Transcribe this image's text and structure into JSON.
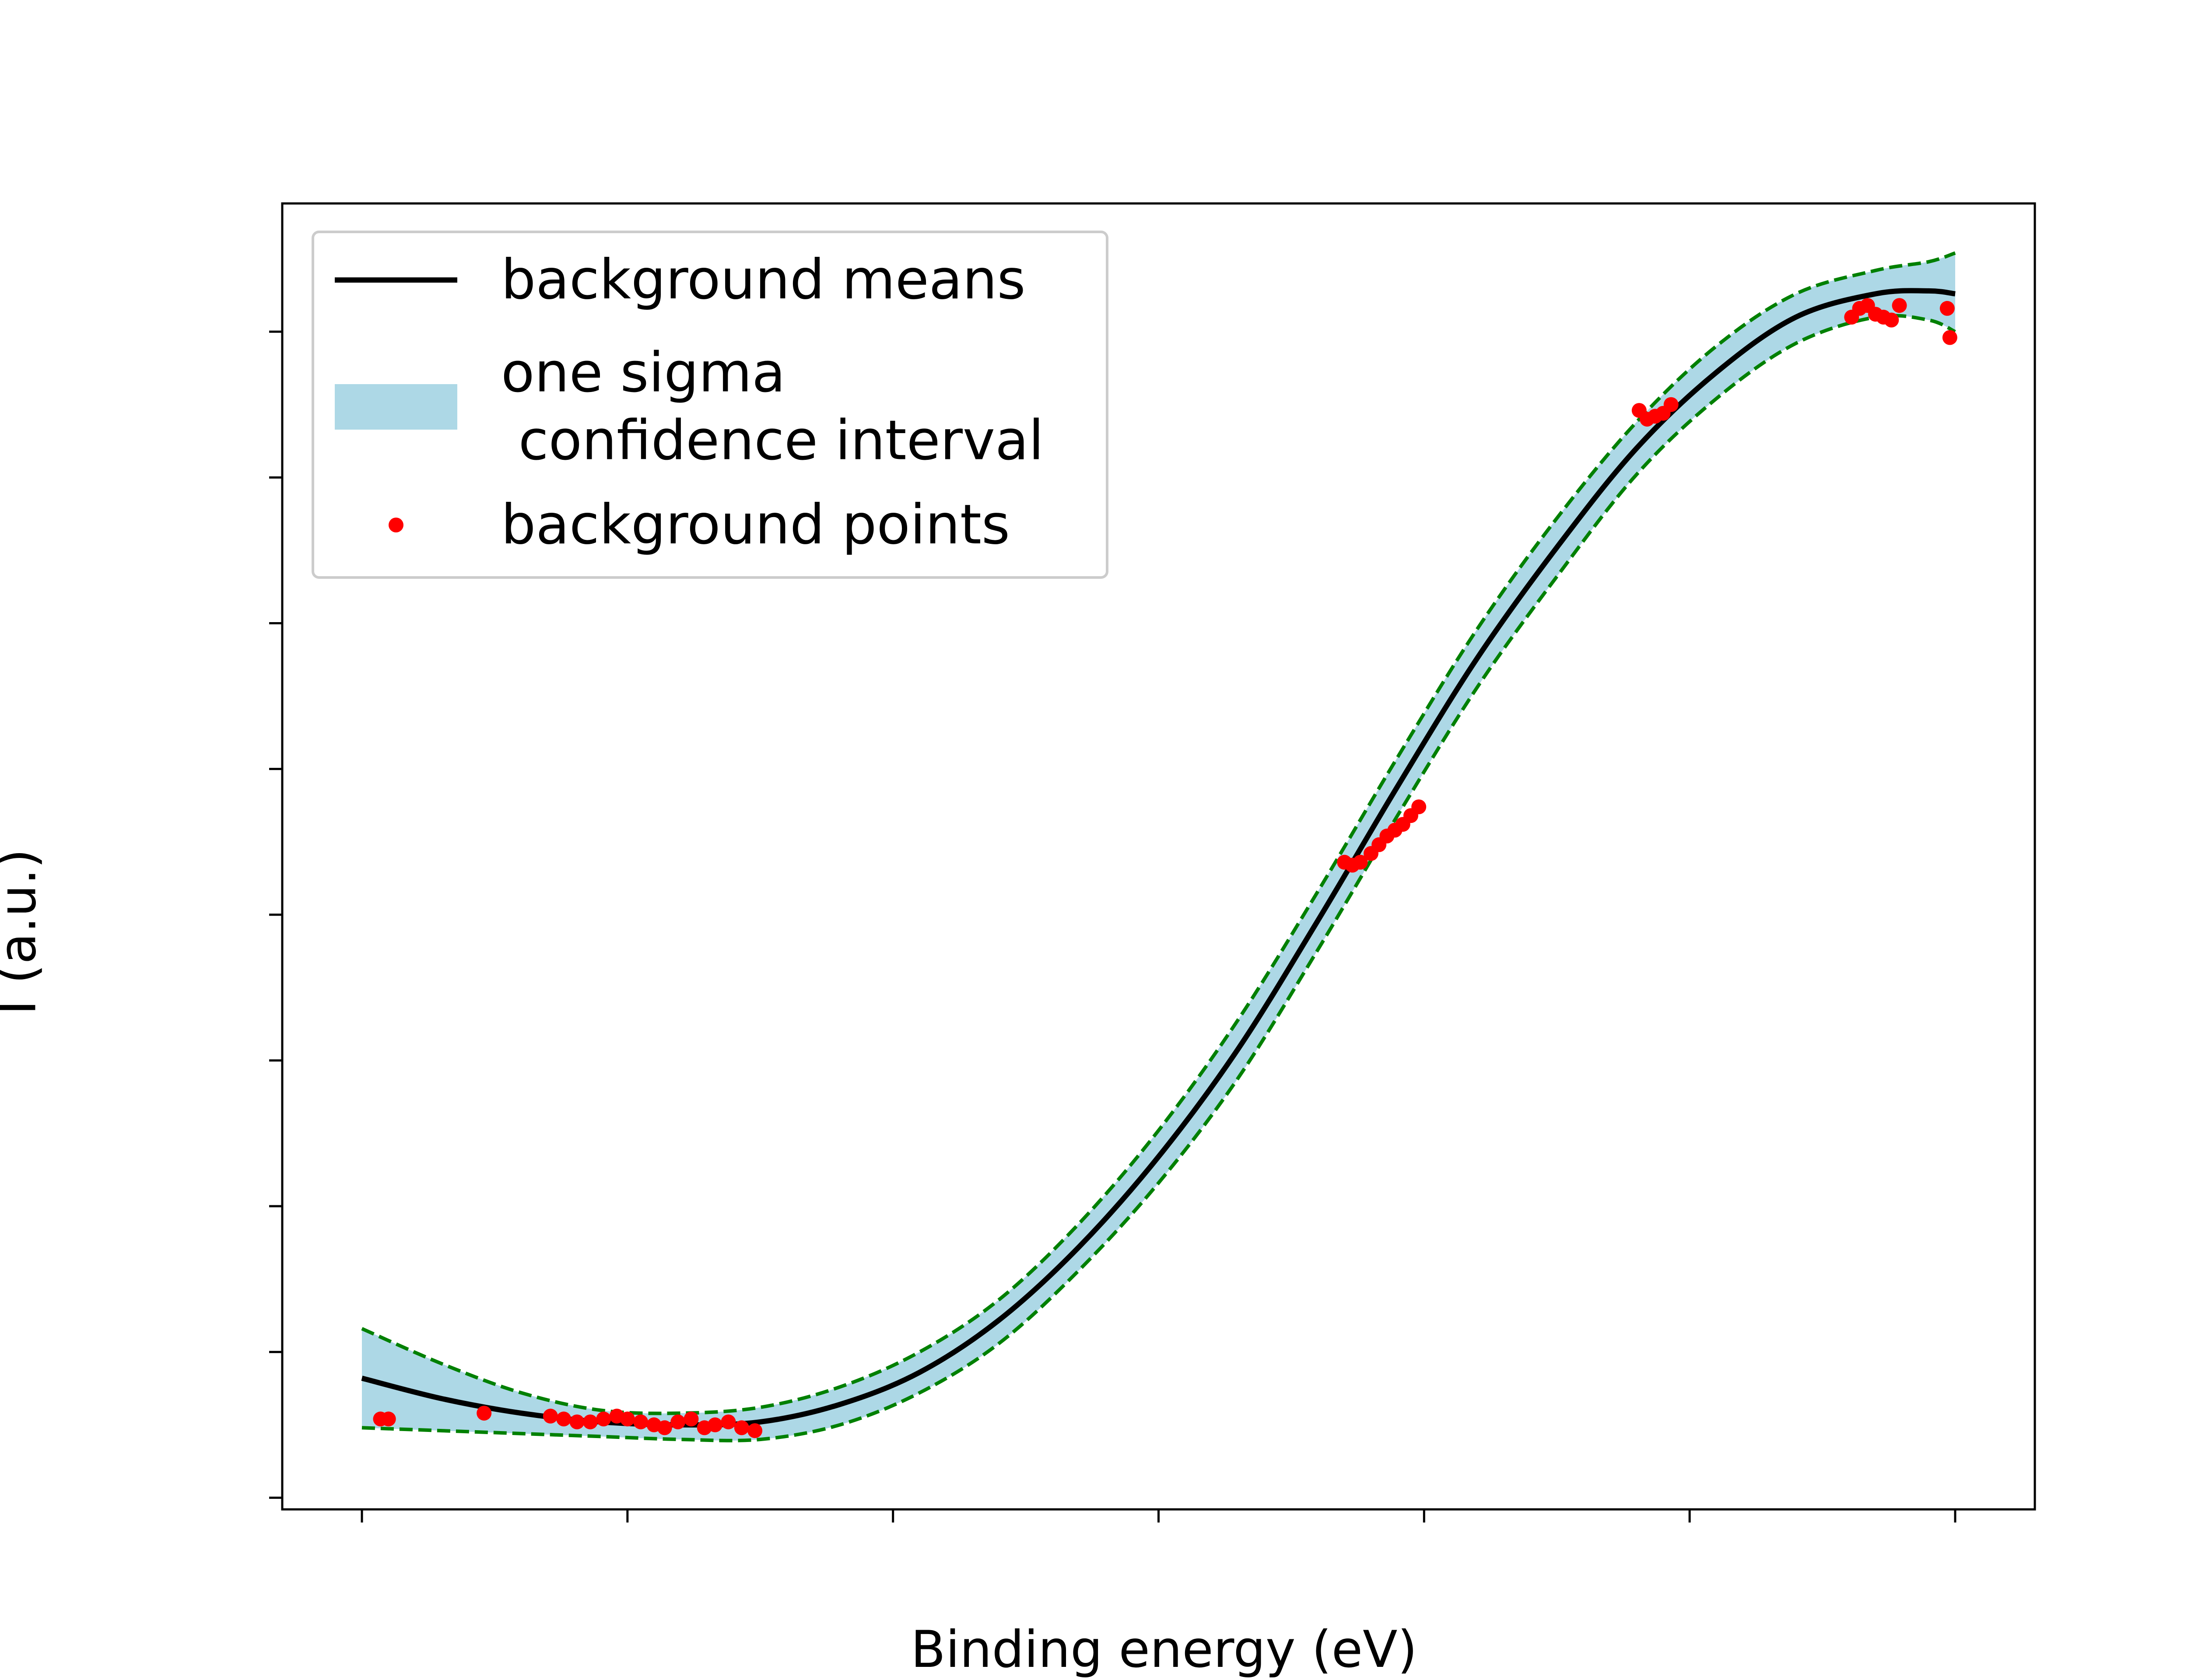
{
  "chart_data": {
    "type": "line",
    "title": "",
    "xlabel": "Binding energy (eV)",
    "ylabel": "I (a.u.)",
    "xlim": [
      907,
      973
    ],
    "ylim": [
      27300,
      49700
    ],
    "grid": false,
    "legend_position": "top-left",
    "x_ticks": [
      "910",
      "920",
      "930",
      "940",
      "950",
      "960",
      "970"
    ],
    "y_ticks": [
      "27500",
      "30000",
      "32500",
      "35000",
      "37500",
      "40000",
      "42500",
      "45000",
      "47500"
    ],
    "colors": {
      "mean_line": "#000000",
      "band_fill": "#add8e6",
      "band_edge": "#008000",
      "points": "#ff0000",
      "legend_frame": "#cccccc"
    },
    "legend": [
      {
        "key": "mean",
        "label_lines": [
          "background means"
        ]
      },
      {
        "key": "band",
        "label_lines": [
          "one sigma",
          " confidence interval"
        ]
      },
      {
        "key": "points",
        "label_lines": [
          "background points"
        ]
      }
    ],
    "series": [
      {
        "name": "background means",
        "kind": "line",
        "x": [
          910,
          913,
          916,
          919,
          922,
          925,
          928,
          931,
          934,
          937,
          940,
          943,
          946,
          949,
          952,
          955,
          958,
          961,
          964,
          967,
          969,
          970
        ],
        "y": [
          29550,
          29200,
          28950,
          28800,
          28750,
          28800,
          29100,
          29650,
          30550,
          31800,
          33350,
          35200,
          37400,
          39700,
          41900,
          43800,
          45500,
          46800,
          47750,
          48150,
          48200,
          48150
        ]
      },
      {
        "name": "one sigma\n confidence interval",
        "kind": "band",
        "x": [
          910,
          913,
          916,
          919,
          922,
          925,
          928,
          931,
          934,
          937,
          940,
          943,
          946,
          949,
          952,
          955,
          958,
          961,
          964,
          967,
          969,
          970
        ],
        "upper": [
          30400,
          29800,
          29300,
          29000,
          28950,
          29050,
          29400,
          30000,
          30900,
          32200,
          33800,
          35700,
          37900,
          40200,
          42400,
          44300,
          45950,
          47250,
          48150,
          48550,
          48700,
          48850
        ],
        "lower": [
          28700,
          28650,
          28600,
          28550,
          28500,
          28500,
          28750,
          29300,
          30150,
          31400,
          32900,
          34700,
          36900,
          39200,
          41400,
          43300,
          45050,
          46350,
          47300,
          47750,
          47700,
          47500
        ]
      },
      {
        "name": "background points",
        "kind": "scatter",
        "x": [
          910.7,
          911.0,
          914.6,
          917.1,
          917.6,
          918.1,
          918.6,
          919.1,
          919.6,
          920.0,
          920.5,
          921.0,
          921.4,
          921.9,
          922.4,
          922.9,
          923.3,
          923.8,
          924.3,
          924.8,
          947.0,
          947.3,
          947.6,
          948.0,
          948.3,
          948.6,
          948.9,
          949.2,
          949.5,
          949.8,
          958.1,
          958.4,
          958.7,
          959.0,
          959.3,
          966.1,
          966.4,
          966.7,
          967.0,
          967.3,
          967.6,
          967.9,
          969.7,
          969.8
        ],
        "y": [
          28850,
          28850,
          28950,
          28900,
          28850,
          28800,
          28800,
          28850,
          28900,
          28850,
          28800,
          28750,
          28700,
          28800,
          28850,
          28700,
          28750,
          28800,
          28700,
          28650,
          38400,
          38350,
          38400,
          38550,
          38700,
          38850,
          38950,
          39050,
          39200,
          39350,
          46150,
          46000,
          46050,
          46100,
          46250,
          47750,
          47900,
          47950,
          47800,
          47750,
          47700,
          47950,
          47900,
          47400
        ]
      }
    ]
  }
}
